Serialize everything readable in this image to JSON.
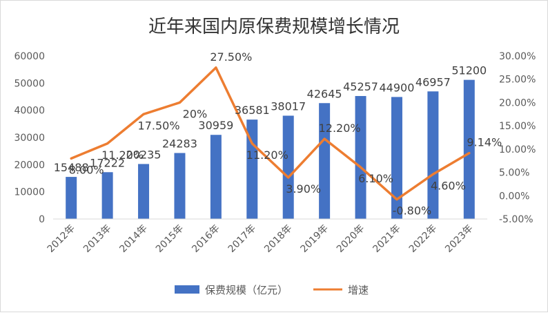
{
  "chart_data": {
    "type": "bar",
    "title": "近年来国内原保费规模增长情况",
    "categories": [
      "2012年",
      "2013年",
      "2014年",
      "2015年",
      "2016年",
      "2017年",
      "2018年",
      "2019年",
      "2020年",
      "2021年",
      "2022年",
      "2023年"
    ],
    "series": [
      {
        "name": "保费规模（亿元）",
        "type": "bar",
        "axis": "left",
        "values": [
          15488,
          17222,
          20235,
          24283,
          30959,
          36581,
          38017,
          42645,
          45257,
          44900,
          46957,
          51200
        ],
        "labels": [
          "15488",
          "17222",
          "20235",
          "24283",
          "30959",
          "36581",
          "38017",
          "42645",
          "45257",
          "44900",
          "46957",
          "51200"
        ]
      },
      {
        "name": "增速",
        "type": "line",
        "axis": "right",
        "values": [
          8.0,
          11.2,
          17.5,
          20.0,
          27.5,
          11.2,
          3.9,
          12.2,
          6.1,
          -0.8,
          4.6,
          9.14
        ],
        "labels": [
          "8.00%",
          "11.20%",
          "17.50%",
          "20%",
          "27.50%",
          "11.20%",
          "3.90%",
          "12.20%",
          "6.10%",
          "-0.80%",
          "4.60%",
          "9.14%"
        ]
      }
    ],
    "y_left": {
      "min": 0,
      "max": 60000,
      "ticks": [
        "0",
        "10000",
        "20000",
        "30000",
        "40000",
        "50000",
        "60000"
      ]
    },
    "y_right": {
      "min": -5,
      "max": 30,
      "ticks": [
        "-5.00%",
        "0.00%",
        "5.00%",
        "10.00%",
        "15.00%",
        "20.00%",
        "25.00%",
        "30.00%"
      ]
    },
    "grid": false,
    "legend_position": "bottom",
    "colors": {
      "bar": "#4472C4",
      "line": "#ED7D31"
    }
  }
}
